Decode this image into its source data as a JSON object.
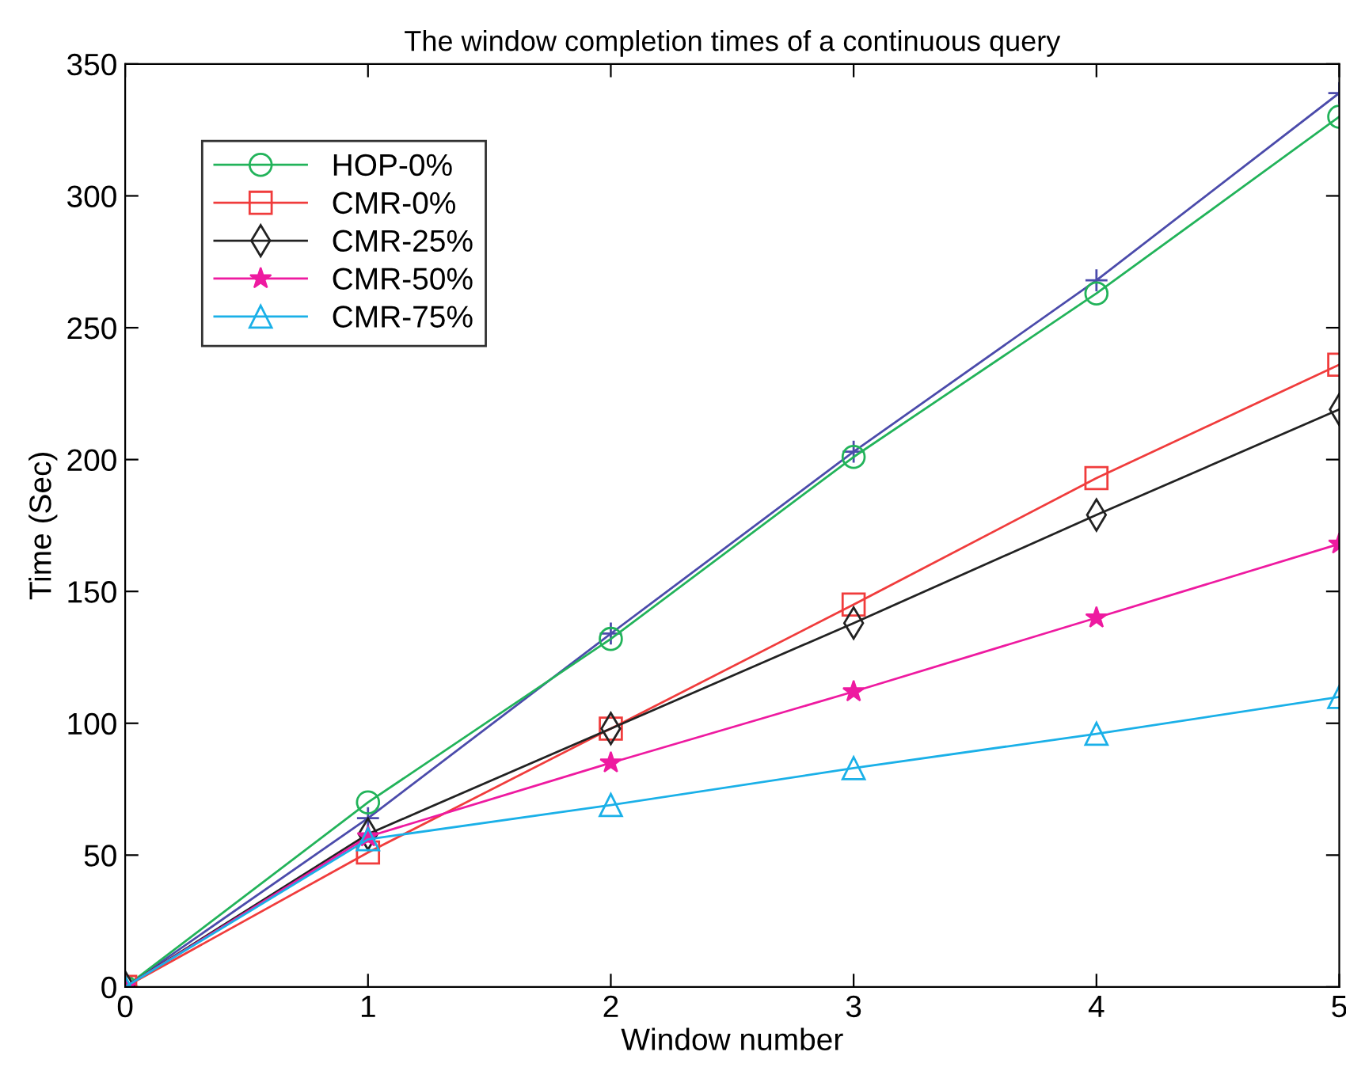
{
  "chart_data": {
    "type": "line",
    "title": "The window completion times of a continuous query",
    "xlabel": "Window number",
    "ylabel": "Time (Sec)",
    "x": [
      0,
      1,
      2,
      3,
      4,
      5
    ],
    "series": [
      {
        "color": "#4b4bab",
        "marker": "cross",
        "values": [
          0,
          64,
          134,
          203,
          268,
          339
        ]
      },
      {
        "name": "HOP-0%",
        "color": "#22b35a",
        "marker": "circle",
        "values": [
          0,
          70,
          132,
          201,
          263,
          330
        ]
      },
      {
        "name": "CMR-0%",
        "color": "#f03c3c",
        "marker": "square",
        "values": [
          0,
          51,
          98,
          145,
          193,
          236
        ]
      },
      {
        "name": "CMR-25%",
        "color": "#222222",
        "marker": "diamond",
        "values": [
          0,
          58,
          98,
          138,
          179,
          219
        ]
      },
      {
        "name": "CMR-50%",
        "color": "#ee1aa0",
        "marker": "star",
        "values": [
          0,
          57,
          85,
          112,
          140,
          168
        ]
      },
      {
        "name": "CMR-75%",
        "color": "#1ab0e8",
        "marker": "triangle",
        "values": [
          0,
          56,
          69,
          83,
          96,
          110
        ]
      }
    ],
    "xlim": [
      0,
      5
    ],
    "xticks": [
      0,
      1,
      2,
      3,
      4,
      5
    ],
    "ylim": [
      0,
      350
    ],
    "yticks": [
      0,
      50,
      100,
      150,
      200,
      250,
      300,
      350
    ],
    "grid": false,
    "legend": "top left",
    "line_style": "solid"
  }
}
